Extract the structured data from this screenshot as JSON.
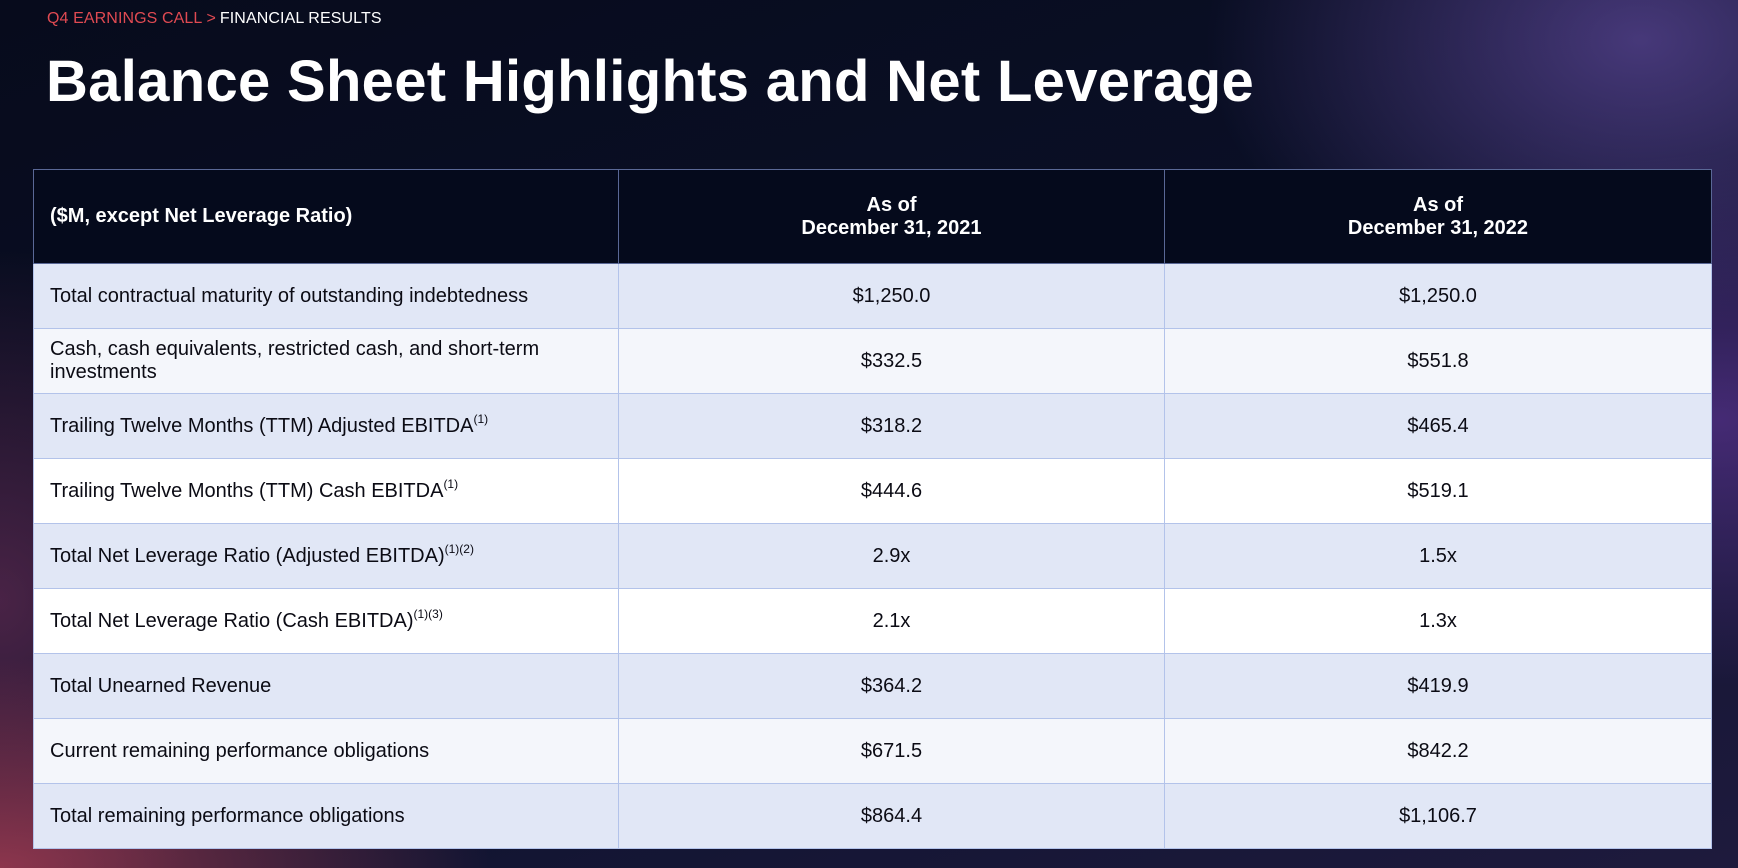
{
  "breadcrumb": {
    "section": "Q4 EARNINGS CALL",
    "separator": ">",
    "current": "FINANCIAL RESULTS"
  },
  "title": "Balance Sheet Highlights and Net Leverage",
  "table": {
    "header": {
      "label": "($M, except Net Leverage Ratio)",
      "col1_line1": "As of",
      "col1_line2": "December 31, 2021",
      "col2_line1": "As of",
      "col2_line2": "December 31, 2022"
    },
    "rows": [
      {
        "label": "Total contractual maturity of outstanding indebtedness",
        "footnote": "",
        "v2021": "$1,250.0",
        "v2022": "$1,250.0"
      },
      {
        "label": "Cash, cash equivalents, restricted cash, and short-term investments",
        "footnote": "",
        "v2021": "$332.5",
        "v2022": "$551.8"
      },
      {
        "label": "Trailing Twelve Months (TTM) Adjusted EBITDA",
        "footnote": "(1)",
        "v2021": "$318.2",
        "v2022": "$465.4"
      },
      {
        "label": "Trailing Twelve Months (TTM) Cash EBITDA",
        "footnote": "(1)",
        "v2021": "$444.6",
        "v2022": "$519.1"
      },
      {
        "label": "Total Net Leverage Ratio (Adjusted EBITDA)",
        "footnote": "(1)(2)",
        "v2021": "2.9x",
        "v2022": "1.5x"
      },
      {
        "label": "Total Net Leverage Ratio (Cash EBITDA)",
        "footnote": "(1)(3)",
        "v2021": "2.1x",
        "v2022": "1.3x"
      },
      {
        "label": "Total Unearned Revenue",
        "footnote": "",
        "v2021": "$364.2",
        "v2022": "$419.9"
      },
      {
        "label": "Current remaining performance obligations",
        "footnote": "",
        "v2021": "$671.5",
        "v2022": "$842.2"
      },
      {
        "label": "Total remaining performance obligations",
        "footnote": "",
        "v2021": "$864.4",
        "v2022": "$1,106.7"
      }
    ]
  },
  "colors": {
    "accent": "#e04a52",
    "header_bg": "#050a1c",
    "row_blue": "#e1e7f6",
    "row_light": "#f4f6fb",
    "row_white": "#ffffff"
  }
}
